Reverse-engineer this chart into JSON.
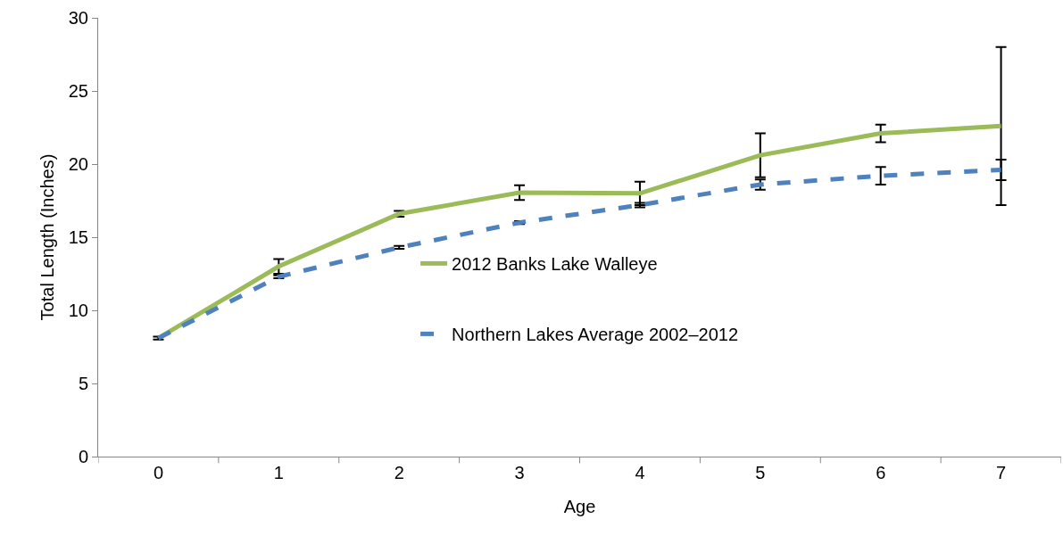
{
  "chart_data": {
    "type": "line",
    "xlabel": "Age",
    "ylabel": "Total Length (Inches)",
    "categories": [
      "0",
      "1",
      "2",
      "3",
      "4",
      "5",
      "6",
      "7"
    ],
    "series": [
      {
        "name": "2012 Banks Lake Walleye",
        "color": "#9bbb59",
        "line_style": "solid",
        "values": [
          8.1,
          13.0,
          16.6,
          18.05,
          18.0,
          20.6,
          22.1,
          22.6
        ],
        "errors": [
          null,
          0.5,
          0.2,
          0.5,
          0.8,
          1.5,
          0.6,
          5.4
        ]
      },
      {
        "name": "Northern Lakes Average 2002–2012",
        "color": "#4f81bd",
        "line_style": "dashed",
        "values": [
          8.1,
          12.3,
          14.3,
          16.0,
          17.2,
          18.6,
          19.2,
          19.6
        ],
        "errors": [
          0.1,
          0.1,
          0.1,
          0.1,
          0.15,
          0.35,
          0.6,
          0.7
        ]
      }
    ],
    "ylim": [
      0,
      30
    ],
    "yticks": [
      0,
      5,
      10,
      15,
      20,
      25,
      30
    ],
    "grid": false,
    "legend": "center",
    "marker": "none"
  }
}
